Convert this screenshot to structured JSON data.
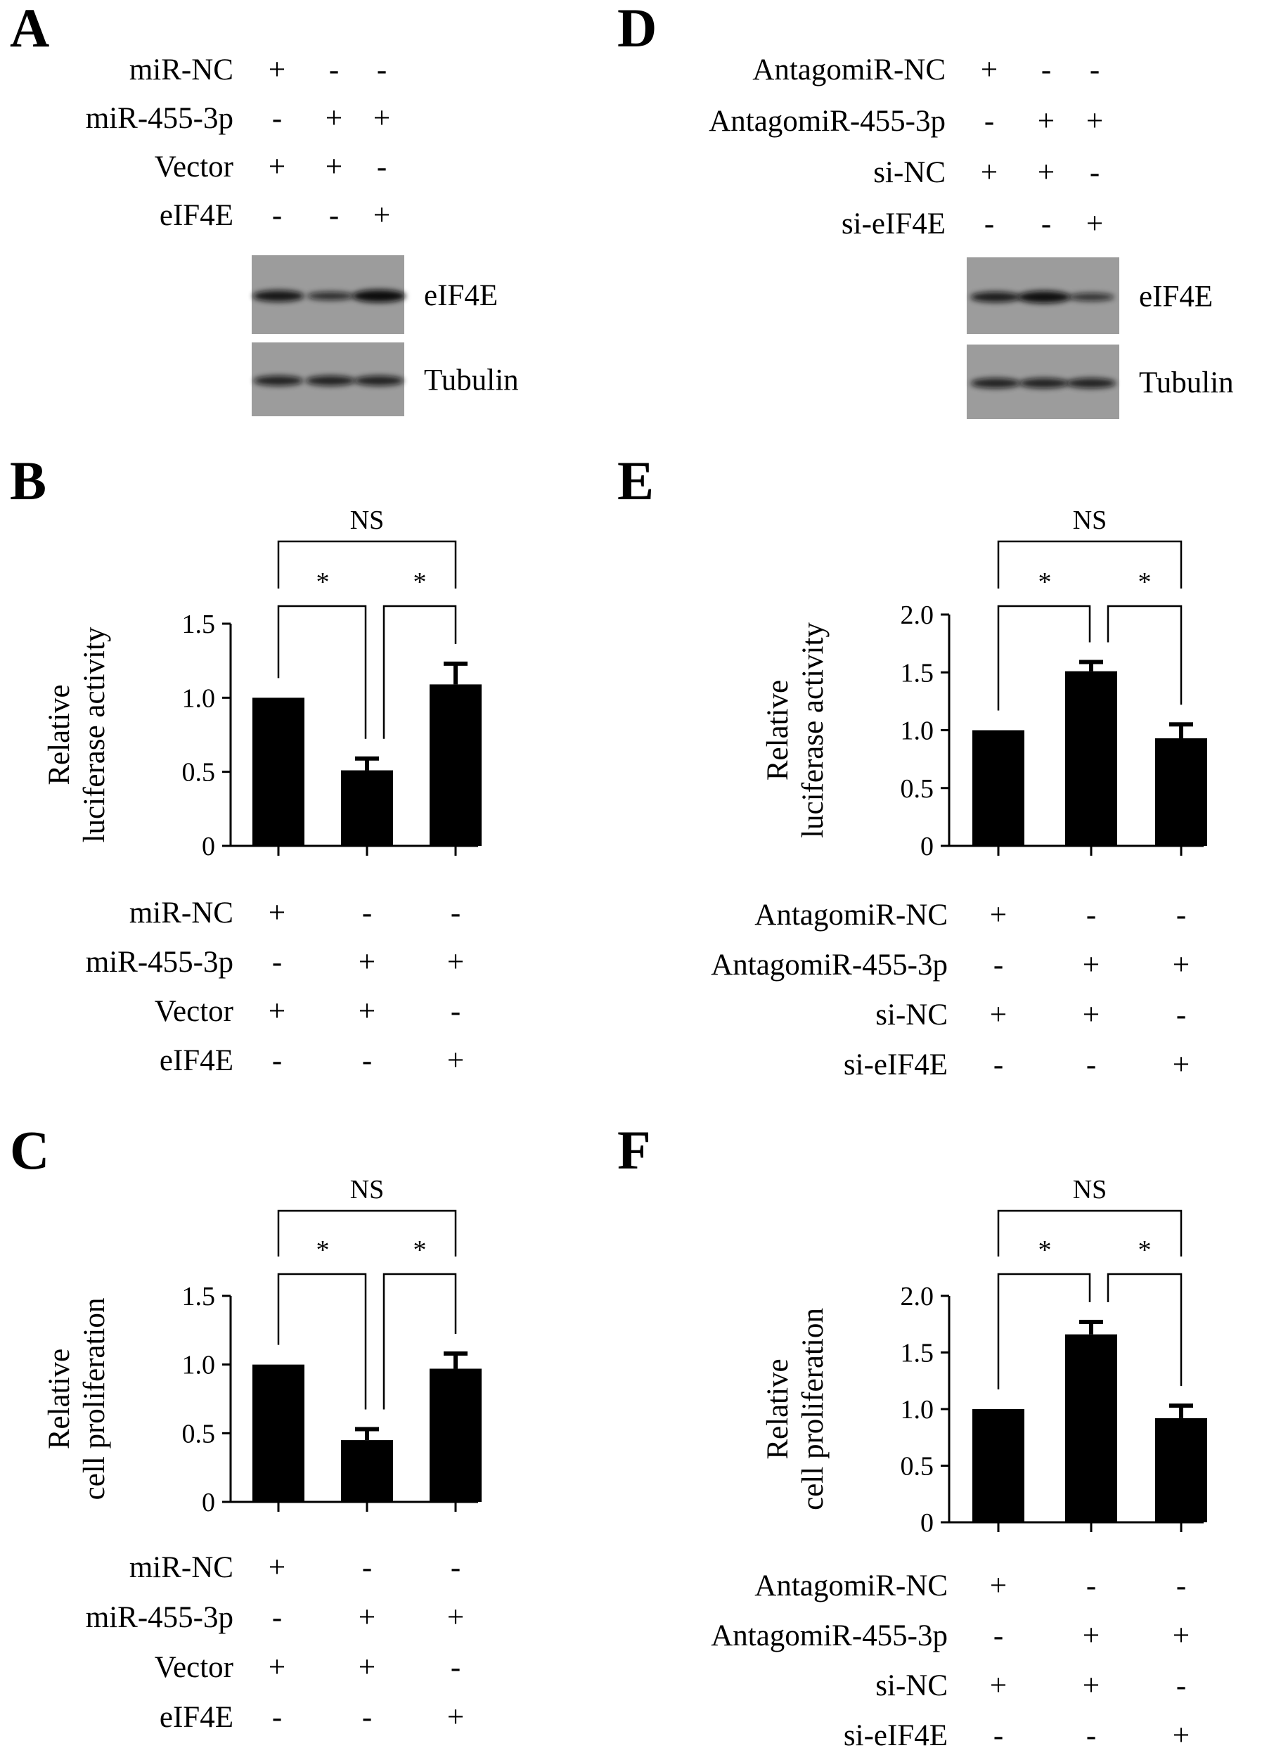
{
  "panels": {
    "A": {
      "label": "A",
      "rows": [
        {
          "name": "miR-NC",
          "signs": [
            "+",
            "-",
            "-"
          ]
        },
        {
          "name": "miR-455-3p",
          "signs": [
            "-",
            "+",
            "+"
          ]
        },
        {
          "name": "Vector",
          "signs": [
            "+",
            "+",
            "-"
          ]
        },
        {
          "name": "eIF4E",
          "signs": [
            "-",
            "-",
            "+"
          ]
        }
      ],
      "blots": [
        {
          "name": "eIF4E",
          "intensity": [
            0.85,
            0.5,
            1.0
          ]
        },
        {
          "name": "Tubulin",
          "intensity": [
            0.7,
            0.7,
            0.7
          ]
        }
      ]
    },
    "D": {
      "label": "D",
      "rows": [
        {
          "name": "AntagomiR-NC",
          "signs": [
            "+",
            "-",
            "-"
          ]
        },
        {
          "name": "AntagomiR-455-3p",
          "signs": [
            "-",
            "+",
            "+"
          ]
        },
        {
          "name": "si-NC",
          "signs": [
            "+",
            "+",
            "-"
          ]
        },
        {
          "name": "si-eIF4E",
          "signs": [
            "-",
            "-",
            "+"
          ]
        }
      ],
      "blots": [
        {
          "name": "eIF4E",
          "intensity": [
            0.75,
            0.95,
            0.45
          ]
        },
        {
          "name": "Tubulin",
          "intensity": [
            0.7,
            0.7,
            0.7
          ]
        }
      ]
    }
  },
  "chart_data": [
    {
      "panel": "B",
      "type": "bar",
      "ylabel": [
        "Relative",
        "luciferase activity"
      ],
      "yticks": [
        "0",
        "0.5",
        "1.0",
        "1.5"
      ],
      "ylim": [
        0,
        1.5
      ],
      "values": [
        1.0,
        0.51,
        1.09
      ],
      "errors": [
        0,
        0.08,
        0.14
      ],
      "significance": {
        "top": "NS",
        "left": "*",
        "right": "*"
      },
      "rows": [
        {
          "name": "miR-NC",
          "signs": [
            "+",
            "-",
            "-"
          ]
        },
        {
          "name": "miR-455-3p",
          "signs": [
            "-",
            "+",
            "+"
          ]
        },
        {
          "name": "Vector",
          "signs": [
            "+",
            "+",
            "-"
          ]
        },
        {
          "name": "eIF4E",
          "signs": [
            "-",
            "-",
            "+"
          ]
        }
      ]
    },
    {
      "panel": "C",
      "type": "bar",
      "ylabel": [
        "Relative",
        "cell proliferation"
      ],
      "yticks": [
        "0",
        "0.5",
        "1.0",
        "1.5"
      ],
      "ylim": [
        0,
        1.5
      ],
      "values": [
        1.0,
        0.45,
        0.97
      ],
      "errors": [
        0,
        0.08,
        0.11
      ],
      "significance": {
        "top": "NS",
        "left": "*",
        "right": "*"
      },
      "rows": [
        {
          "name": "miR-NC",
          "signs": [
            "+",
            "-",
            "-"
          ]
        },
        {
          "name": "miR-455-3p",
          "signs": [
            "-",
            "+",
            "+"
          ]
        },
        {
          "name": "Vector",
          "signs": [
            "+",
            "+",
            "-"
          ]
        },
        {
          "name": "eIF4E",
          "signs": [
            "-",
            "-",
            "+"
          ]
        }
      ]
    },
    {
      "panel": "E",
      "type": "bar",
      "ylabel": [
        "Relative",
        "luciferase activity"
      ],
      "yticks": [
        "0",
        "0.5",
        "1.0",
        "1.5",
        "2.0"
      ],
      "ylim": [
        0,
        2.0
      ],
      "values": [
        1.0,
        1.51,
        0.93
      ],
      "errors": [
        0,
        0.08,
        0.12
      ],
      "significance": {
        "top": "NS",
        "left": "*",
        "right": "*"
      },
      "rows": [
        {
          "name": "AntagomiR-NC",
          "signs": [
            "+",
            "-",
            "-"
          ]
        },
        {
          "name": "AntagomiR-455-3p",
          "signs": [
            "-",
            "+",
            "+"
          ]
        },
        {
          "name": "si-NC",
          "signs": [
            "+",
            "+",
            "-"
          ]
        },
        {
          "name": "si-eIF4E",
          "signs": [
            "-",
            "-",
            "+"
          ]
        }
      ]
    },
    {
      "panel": "F",
      "type": "bar",
      "ylabel": [
        "Relative",
        "cell proliferation"
      ],
      "yticks": [
        "0",
        "0.5",
        "1.0",
        "1.5",
        "2.0"
      ],
      "ylim": [
        0,
        2.0
      ],
      "values": [
        1.0,
        1.66,
        0.92
      ],
      "errors": [
        0,
        0.11,
        0.11
      ],
      "significance": {
        "top": "NS",
        "left": "*",
        "right": "*"
      },
      "rows": [
        {
          "name": "AntagomiR-NC",
          "signs": [
            "+",
            "-",
            "-"
          ]
        },
        {
          "name": "AntagomiR-455-3p",
          "signs": [
            "-",
            "+",
            "+"
          ]
        },
        {
          "name": "si-NC",
          "signs": [
            "+",
            "+",
            "-"
          ]
        },
        {
          "name": "si-eIF4E",
          "signs": [
            "-",
            "-",
            "+"
          ]
        }
      ]
    }
  ]
}
